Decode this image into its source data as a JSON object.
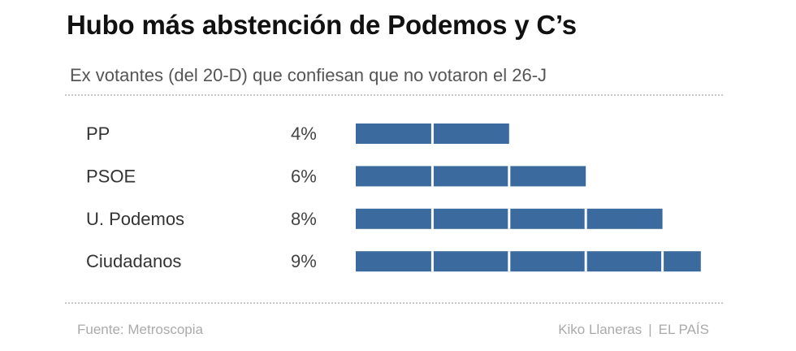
{
  "header": {
    "title": "Hubo más abstención de Podemos y C’s",
    "subtitle": "Ex votantes (del 20-D) que confiesan que no votaron el 26-J"
  },
  "footer": {
    "source": "Fuente: Metroscopia",
    "author": "Kiko Llaneras",
    "separator": "|",
    "outlet": "EL PAÍS"
  },
  "colors": {
    "bar": "#3b6b9e",
    "segment_divider": "#ffffff",
    "category_label": "#333333",
    "value_label": "#444444"
  },
  "chart_data": {
    "type": "bar",
    "orientation": "horizontal",
    "categories": [
      "PP",
      "PSOE",
      "U. Podemos",
      "Ciudadanos"
    ],
    "values": [
      4,
      6,
      8,
      9
    ],
    "value_labels": [
      "4%",
      "6%",
      "8%",
      "9%"
    ],
    "unit": "%",
    "segment_step": 2,
    "xlim": [
      0,
      9
    ],
    "grid": false,
    "legend": "none",
    "title": "Hubo más abstención de Podemos y C’s",
    "subtitle": "Ex votantes (del 20-D) que confiesan que no votaron el 26-J"
  }
}
